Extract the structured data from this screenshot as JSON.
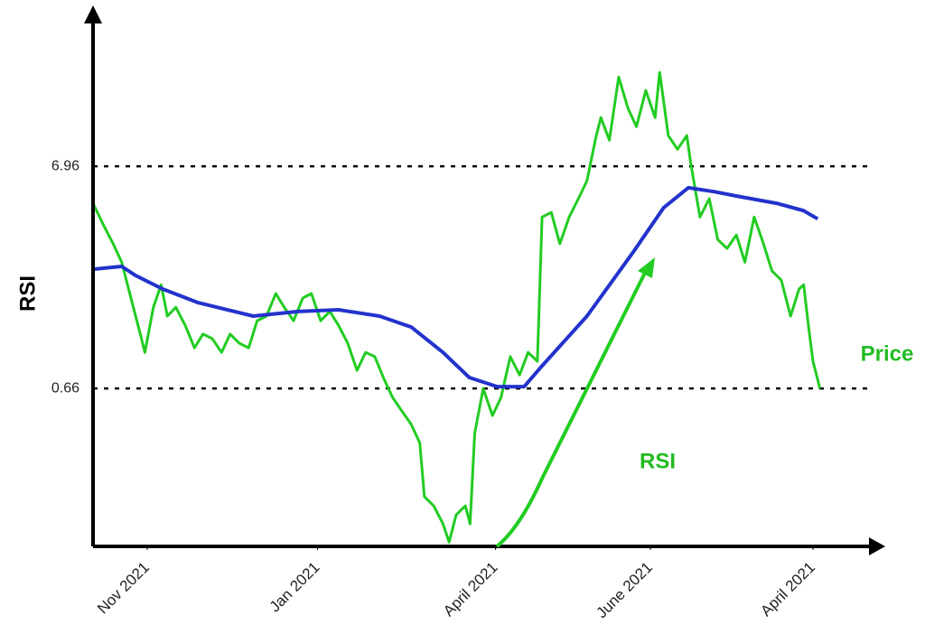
{
  "chart_data": {
    "type": "line",
    "ylabel": "RSI",
    "annotations": [
      "Price",
      "RSI"
    ],
    "xlim": [
      0,
      100
    ],
    "ylim": [
      -3.82,
      11.29
    ],
    "yticks": [
      0.66,
      6.96
    ],
    "xticks": [
      {
        "value": 7,
        "label": "Nov 2021"
      },
      {
        "value": 29,
        "label": "Jan 2021"
      },
      {
        "value": 52,
        "label": "April 2021"
      },
      {
        "value": 72,
        "label": "June 2021"
      },
      {
        "value": 93,
        "label": "April 2021"
      }
    ],
    "grid": true,
    "series": [
      {
        "color": "#22cc22",
        "x": [
          0,
          1.4,
          2.6,
          3.7,
          4.9,
          6.1,
          6.7,
          7.8,
          8.8,
          9.6,
          10.7,
          11.9,
          13.1,
          14.2,
          15.4,
          16.6,
          17.7,
          18.9,
          20.1,
          21.2,
          22.4,
          23.6,
          24.7,
          25.9,
          27.1,
          28.2,
          29.4,
          30.6,
          31.7,
          32.9,
          34.1,
          35.2,
          36.4,
          37.6,
          38.7,
          39.9,
          41.1,
          42.2,
          42.8,
          44.0,
          45.2,
          46.0,
          46.9,
          48.1,
          48.7,
          49.3,
          50.4,
          51.6,
          52.7,
          53.9,
          55.1,
          56.2,
          57.4,
          58.0,
          59.2,
          60.3,
          61.5,
          62.7,
          63.8,
          65.0,
          65.6,
          66.7,
          67.9,
          69.1,
          70.2,
          71.4,
          72.6,
          73.2,
          74.3,
          75.5,
          76.7,
          77.2,
          77.8,
          78.4,
          79.6,
          80.7,
          81.9,
          83.1,
          84.2,
          85.4,
          86.6,
          87.7,
          88.9,
          90.1,
          91.2,
          91.8,
          92.4,
          93.0,
          93.9
        ],
        "values": [
          5.91,
          5.27,
          4.76,
          4.24,
          3.22,
          2.2,
          1.68,
          2.96,
          3.6,
          2.71,
          2.96,
          2.45,
          1.81,
          2.2,
          2.07,
          1.68,
          2.2,
          1.94,
          1.81,
          2.58,
          2.71,
          3.35,
          2.96,
          2.58,
          3.22,
          3.35,
          2.58,
          2.84,
          2.45,
          1.94,
          1.17,
          1.68,
          1.56,
          0.92,
          0.4,
          0.02,
          -0.36,
          -0.88,
          -2.41,
          -2.67,
          -3.18,
          -3.7,
          -2.93,
          -2.67,
          -3.18,
          -0.62,
          0.66,
          -0.11,
          0.4,
          1.56,
          1.04,
          1.68,
          1.43,
          5.52,
          5.65,
          4.76,
          5.52,
          6.04,
          6.55,
          7.83,
          8.34,
          7.7,
          9.49,
          8.6,
          8.08,
          9.11,
          8.34,
          9.62,
          7.83,
          7.44,
          7.83,
          7.06,
          6.29,
          5.52,
          6.04,
          4.88,
          4.63,
          5.01,
          4.24,
          5.52,
          4.76,
          3.99,
          3.73,
          2.71,
          3.48,
          3.6,
          2.45,
          1.43,
          0.66
        ]
      },
      {
        "color": "#2233cc",
        "x": [
          0,
          3.7,
          5.5,
          9.0,
          13.6,
          20.7,
          26.5,
          31.7,
          37.0,
          41.1,
          45.2,
          48.6,
          52.2,
          55.7,
          58.0,
          63.8,
          69.7,
          73.7,
          76.9,
          80.2,
          83.7,
          88.3,
          91.8,
          93.6
        ],
        "values": [
          4.04,
          4.12,
          3.86,
          3.48,
          3.09,
          2.71,
          2.84,
          2.89,
          2.71,
          2.4,
          1.68,
          0.97,
          0.71,
          0.71,
          1.3,
          2.71,
          4.5,
          5.78,
          6.35,
          6.24,
          6.09,
          5.91,
          5.7,
          5.47
        ]
      }
    ]
  }
}
